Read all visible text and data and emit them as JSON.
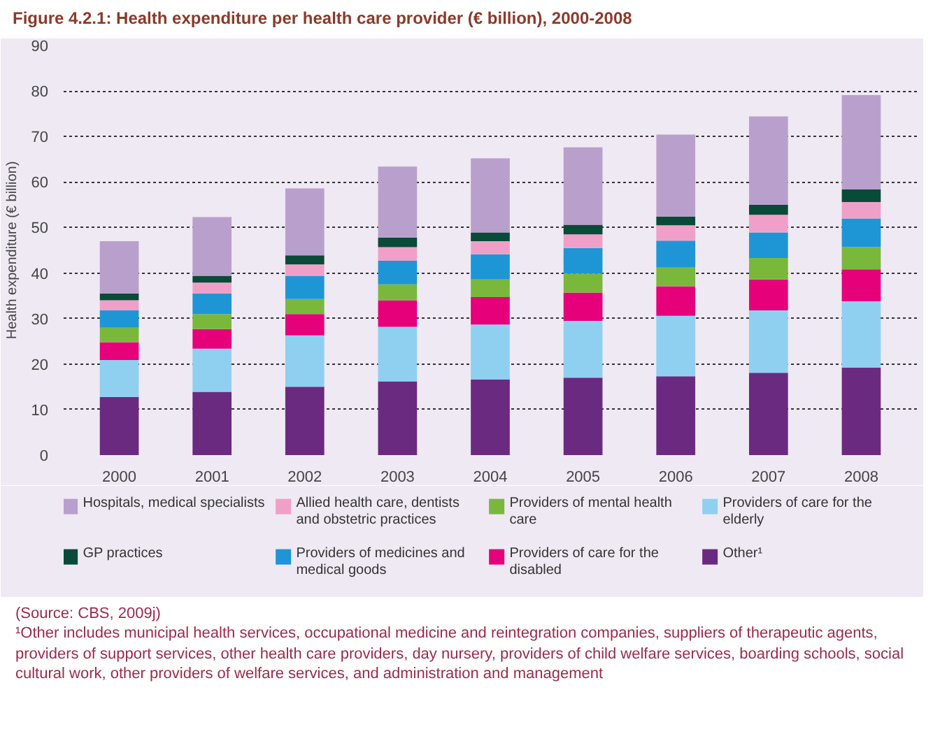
{
  "chart_data": {
    "type": "bar",
    "stacked": true,
    "title": "Figure 4.2.1: Health expenditure per health care provider (€ billion), 2000-2008",
    "ylabel": "Health expenditure (€ billion)",
    "categories": [
      "2000",
      "2001",
      "2002",
      "2003",
      "2004",
      "2005",
      "2006",
      "2007",
      "2008"
    ],
    "ylim": [
      0,
      90
    ],
    "yticks": [
      0,
      10,
      20,
      30,
      40,
      50,
      60,
      70,
      80,
      90
    ],
    "grid": "y",
    "legend": "bottom",
    "series": [
      {
        "name": "Other¹",
        "color": "#6a2a80",
        "values": [
          12.8,
          13.9,
          15.0,
          16.2,
          16.6,
          17.0,
          17.3,
          18.1,
          19.2
        ]
      },
      {
        "name": "Providers of care for the elderly",
        "color": "#8fd0f0",
        "values": [
          8.1,
          9.5,
          11.3,
          12.0,
          12.1,
          12.5,
          13.3,
          13.7,
          14.6
        ]
      },
      {
        "name": "Providers of care for the disabled",
        "color": "#e6007a",
        "values": [
          3.9,
          4.3,
          4.7,
          5.8,
          6.0,
          6.2,
          6.5,
          6.8,
          7.0
        ]
      },
      {
        "name": "Providers of mental health care",
        "color": "#7ab83c",
        "values": [
          3.2,
          3.3,
          3.3,
          3.5,
          3.9,
          4.2,
          4.1,
          4.7,
          4.9
        ]
      },
      {
        "name": "Providers of medicines and medical goods",
        "color": "#1e96d6",
        "values": [
          3.8,
          4.5,
          5.1,
          5.2,
          5.5,
          5.6,
          5.9,
          5.6,
          6.3
        ]
      },
      {
        "name": "Allied health care, dentists and obstetric practices",
        "color": "#f0a0c8",
        "values": [
          2.2,
          2.4,
          2.5,
          3.0,
          2.9,
          3.0,
          3.4,
          3.9,
          3.6
        ]
      },
      {
        "name": "GP practices",
        "color": "#0a4a38",
        "values": [
          1.5,
          1.5,
          2.0,
          2.1,
          1.9,
          2.1,
          1.9,
          2.2,
          2.8
        ]
      },
      {
        "name": "Hospitals, medical specialists",
        "color": "#b9a0cc",
        "values": [
          11.5,
          12.9,
          14.7,
          15.6,
          16.3,
          17.0,
          18.0,
          19.4,
          20.7
        ]
      }
    ],
    "annotations": [
      "(Source: CBS, 2009j)",
      "¹Other includes municipal health services, occupational medicine and reintegration companies, suppliers of therapeutic agents, providers of support services, other health care providers, day nursery, providers of child welfare services, boarding schools, social cultural work, other providers of welfare services, and administration and management"
    ]
  }
}
